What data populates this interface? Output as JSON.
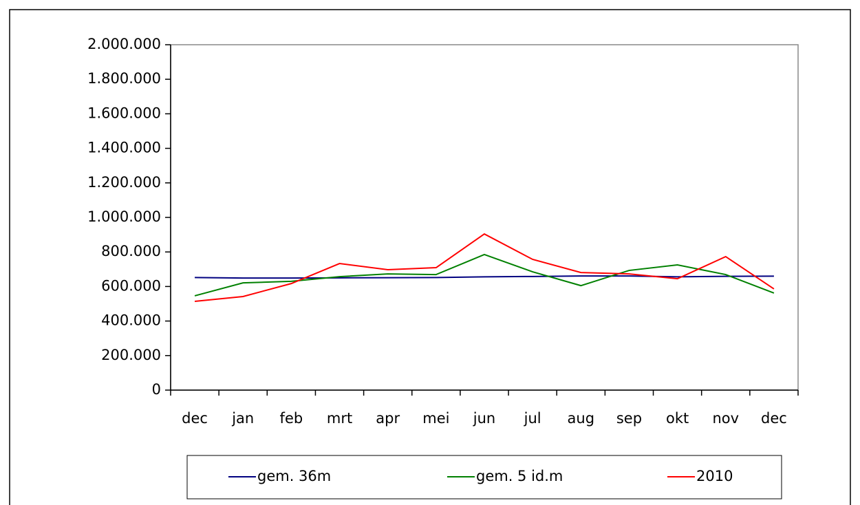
{
  "chart_data": {
    "type": "line",
    "categories": [
      "dec",
      "jan",
      "feb",
      "mrt",
      "apr",
      "mei",
      "jun",
      "jul",
      "aug",
      "sep",
      "okt",
      "nov",
      "dec"
    ],
    "series": [
      {
        "name": "gem. 36m",
        "color": "#000080",
        "values": [
          652000,
          649000,
          649000,
          650000,
          651000,
          652000,
          656000,
          658000,
          661000,
          661000,
          656000,
          659000,
          660000
        ]
      },
      {
        "name": "gem. 5 id.m",
        "color": "#008000",
        "values": [
          546000,
          621000,
          630000,
          657000,
          673000,
          669000,
          785000,
          685000,
          605000,
          693000,
          725000,
          669000,
          562000
        ]
      },
      {
        "name": "2010",
        "color": "#ff0000",
        "values": [
          514000,
          542000,
          617000,
          733000,
          697000,
          709000,
          904000,
          757000,
          681000,
          673000,
          645000,
          773000,
          586000
        ]
      }
    ],
    "ylim": [
      0,
      2000000
    ],
    "yticks": [
      0,
      {
        "value": 200000,
        "label": "200.000"
      },
      {
        "value": 400000,
        "label": "400.000"
      },
      {
        "value": 600000,
        "label": "600.000"
      },
      {
        "value": 800000,
        "label": "800.000"
      },
      {
        "value": 1000000,
        "label": "1.000.000"
      },
      {
        "value": 1200000,
        "label": "1.200.000"
      },
      {
        "value": 1400000,
        "label": "1.400.000"
      },
      {
        "value": 1600000,
        "label": "1.600.000"
      },
      {
        "value": 1800000,
        "label": "1.800.000"
      },
      {
        "value": 2000000,
        "label": "2.000.000"
      }
    ],
    "legend": "bottom"
  }
}
